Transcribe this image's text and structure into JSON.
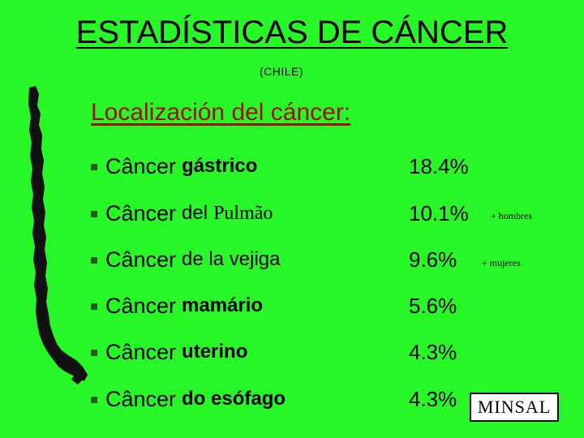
{
  "title": "ESTADÍSTICAS DE CÁNCER",
  "subtitle": "(CHILE)",
  "section_heading": "Localización del cáncer:",
  "items": [
    {
      "word": "Câncer",
      "rest": "gástrico",
      "value": "18.4%"
    },
    {
      "word": "Câncer",
      "rest": "del",
      "rest_extra": "Pulmão",
      "value": "10.1%"
    },
    {
      "word": "Câncer",
      "rest": "de la vejiga",
      "value": "9.6%"
    },
    {
      "word": "Câncer",
      "rest": "mamário",
      "value": "5.6%"
    },
    {
      "word": "Câncer",
      "rest": "uterino",
      "value": "4.3%"
    },
    {
      "word": "Câncer",
      "rest": "do esófago",
      "value": "4.3%"
    }
  ],
  "notes": {
    "men": "+ hombres",
    "women": "+ mujeres"
  },
  "source_label": "MINSAL",
  "colors": {
    "background": "#27f727",
    "heading": "#a01010",
    "bullet": "#1d5e1d",
    "map": "#111111"
  }
}
